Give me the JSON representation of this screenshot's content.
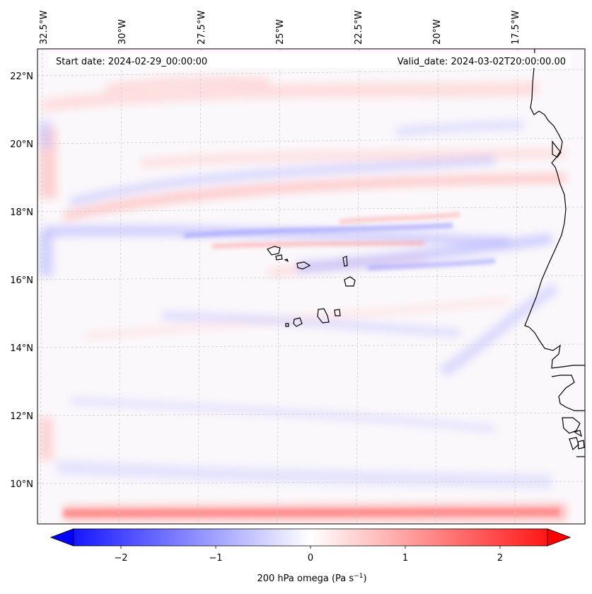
{
  "header": {
    "start_date": "Start date: 2024-02-29_00:00:00",
    "valid_date": "Valid_date: 2024-03-02T20:00:00.00"
  },
  "map": {
    "longitude_labels": [
      "32.5°W",
      "30°W",
      "27.5°W",
      "25°W",
      "22.5°W",
      "20°W",
      "17.5°W"
    ],
    "latitude_labels": [
      "22°N",
      "20°N",
      "18°N",
      "16°N",
      "14°N",
      "12°N",
      "10°N"
    ],
    "gridlines": "dashed"
  },
  "colorbar": {
    "label_text": "200 hPa omega (Pa s",
    "label_exp": "−1",
    "label_close": ")",
    "ticks": [
      "−2",
      "−1",
      "0",
      "1",
      "2"
    ],
    "colormap": "bwr",
    "range": [
      -2.5,
      2.5
    ],
    "extend": "both",
    "color_min": "#0000ff",
    "color_mid": "#ffffff",
    "color_max": "#ff0000"
  }
}
